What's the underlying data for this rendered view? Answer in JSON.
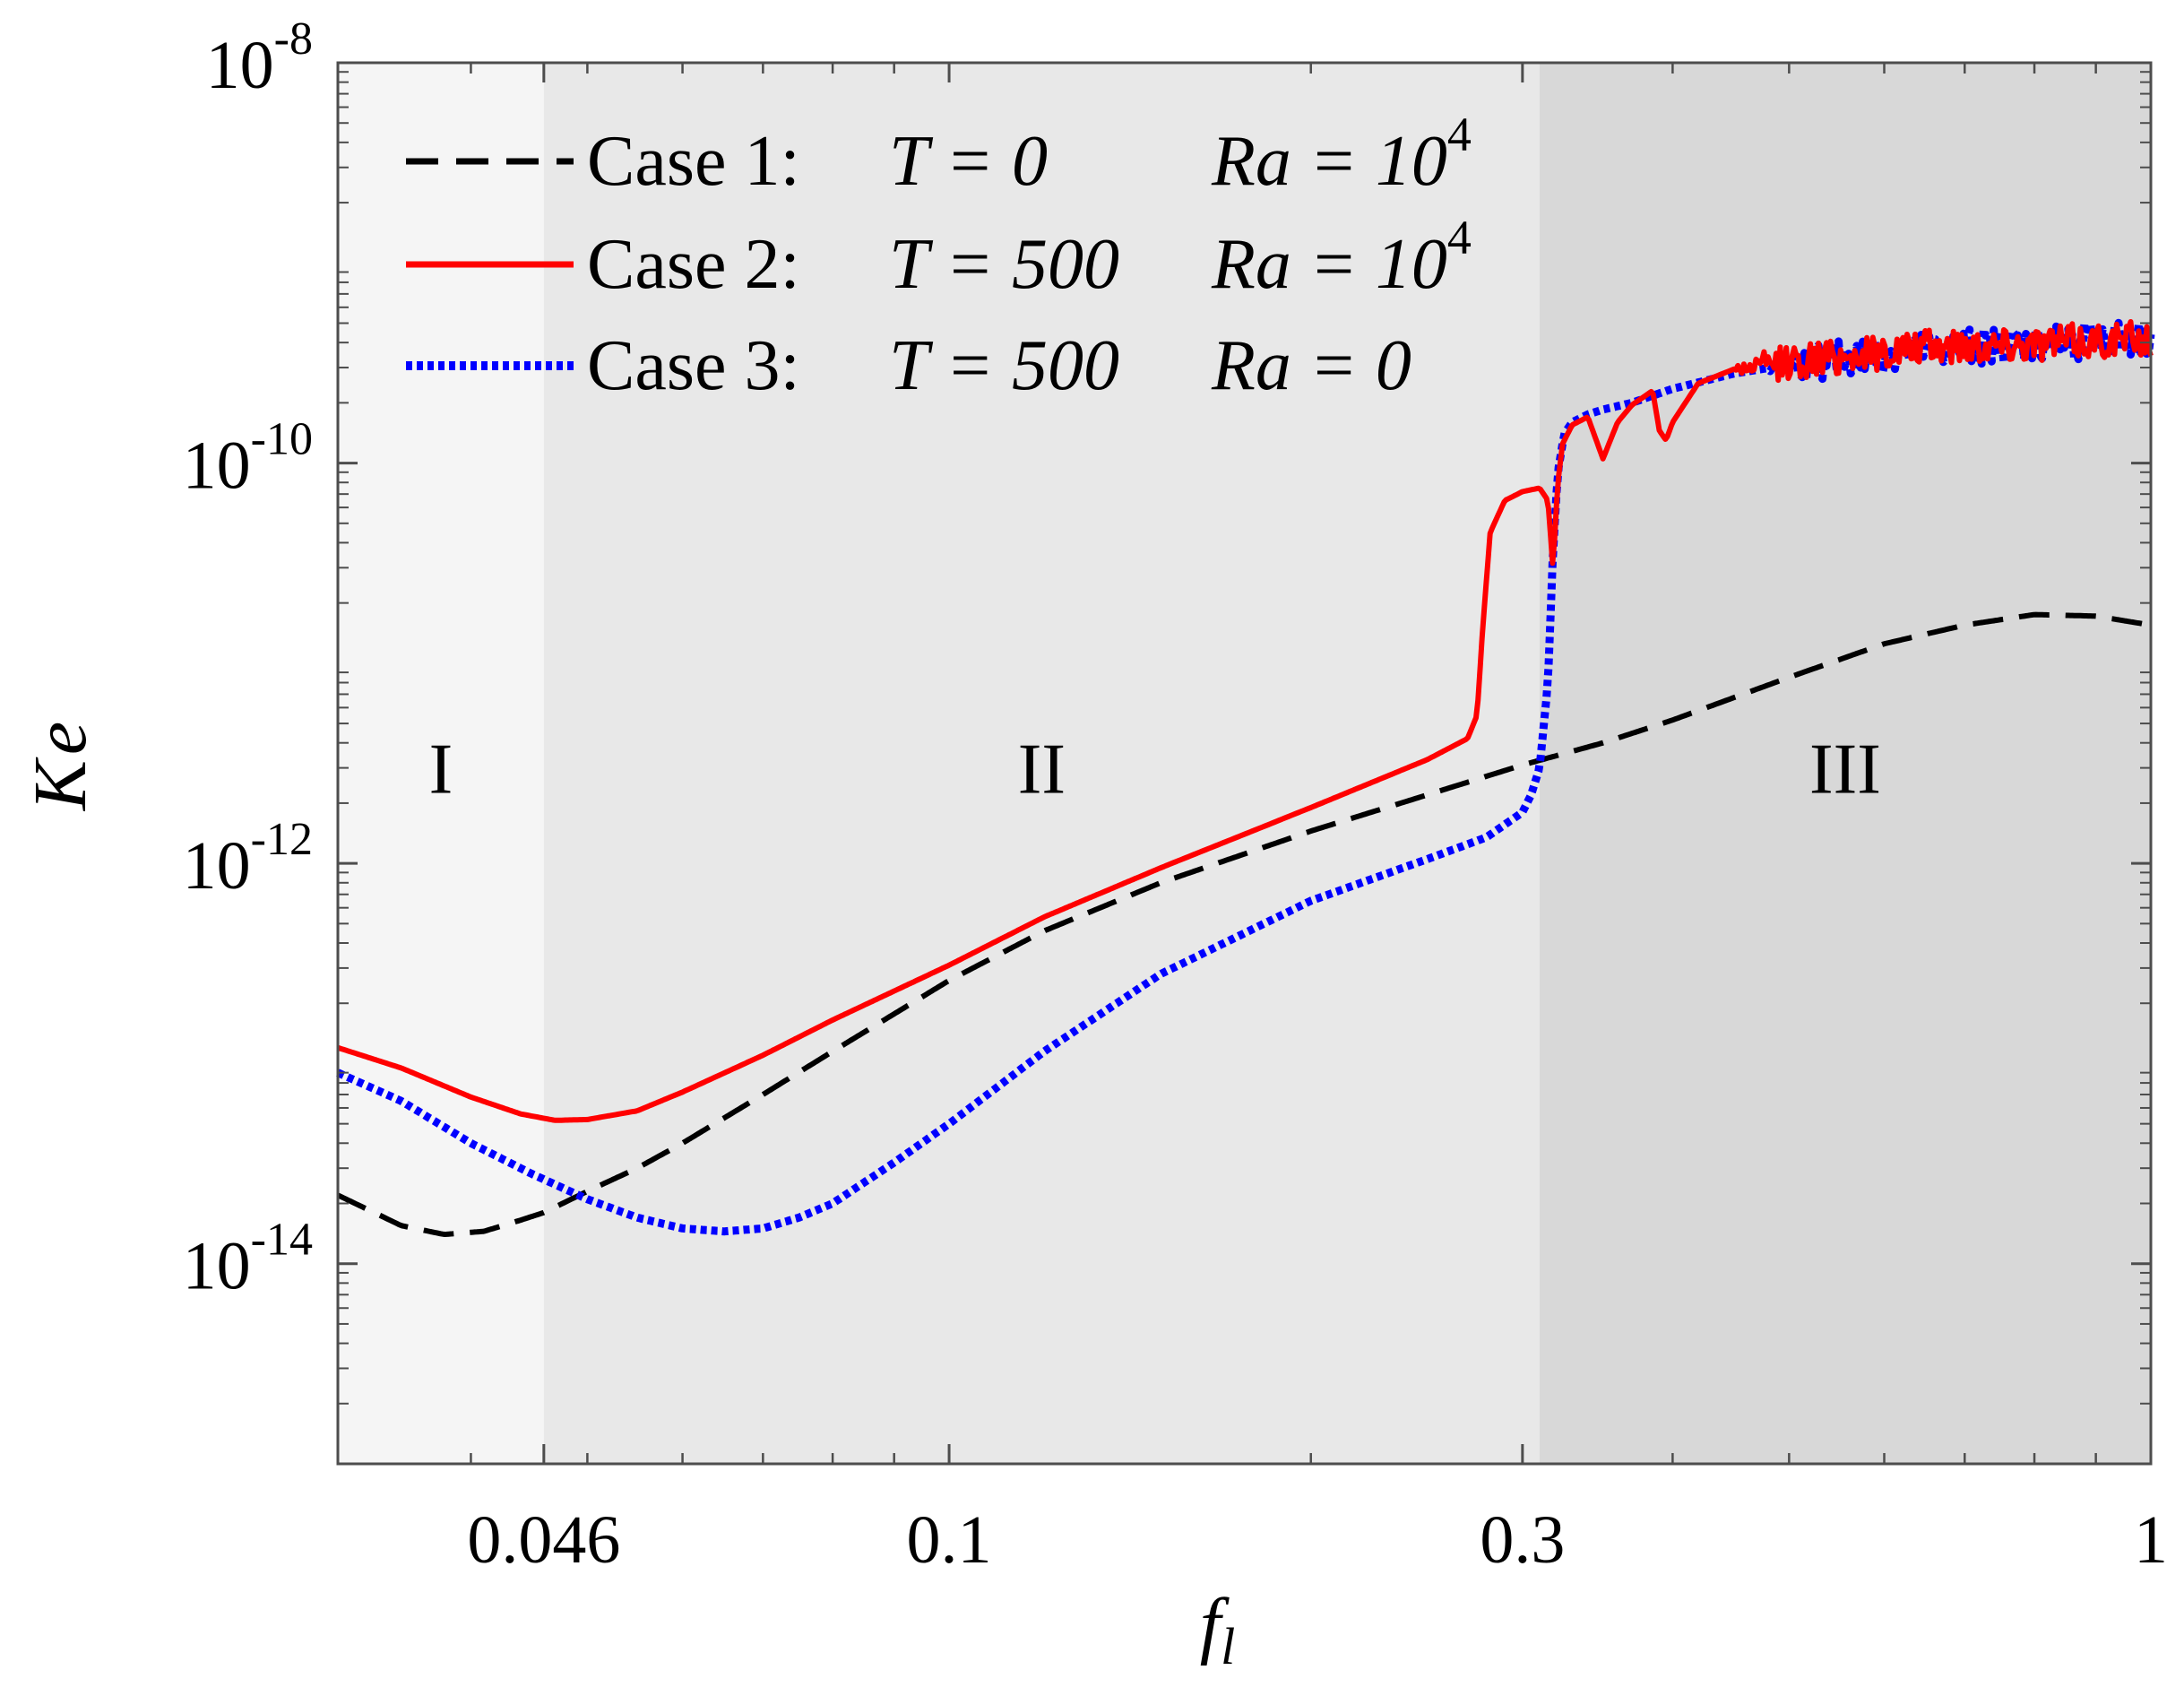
{
  "chart_data": {
    "type": "line",
    "title": "",
    "xlabel": "f",
    "xlabel_sub": "l",
    "ylabel": "Ke",
    "xscale": "log",
    "yscale": "log",
    "xlim": [
      0.031,
      1.0
    ],
    "ylim": [
      1e-15,
      1e-08
    ],
    "grid": false,
    "legend_position": "top-left",
    "x_ticks": [
      {
        "value": 0.046,
        "label": "0.046"
      },
      {
        "value": 0.1,
        "label": "0.1"
      },
      {
        "value": 0.3,
        "label": "0.3"
      },
      {
        "value": 1.0,
        "label": "1"
      }
    ],
    "y_ticks": [
      {
        "value": 1e-08,
        "base": "10",
        "exp": "-8"
      },
      {
        "value": 1e-10,
        "base": "10",
        "exp": "-10"
      },
      {
        "value": 1e-12,
        "base": "10",
        "exp": "-12"
      },
      {
        "value": 1e-14,
        "base": "10",
        "exp": "-14"
      }
    ],
    "regions": [
      {
        "name": "I",
        "x_from": 0.031,
        "x_to": 0.046,
        "color": "#f5f5f5"
      },
      {
        "name": "II",
        "x_from": 0.046,
        "x_to": 0.31,
        "color": "#e8e8e8"
      },
      {
        "name": "III",
        "x_from": 0.31,
        "x_to": 1.0,
        "color": "#d8d8d8"
      }
    ],
    "region_label_y": 3e-12,
    "series": [
      {
        "name": "Case 1",
        "legend": {
          "prefix": "Case 1:",
          "T": "T = 0",
          "Ra": "Ra = 10",
          "Ra_exp": "4"
        },
        "color": "#000000",
        "style": "dashed",
        "noise": 0,
        "x": [
          0.031,
          0.035,
          0.038,
          0.041,
          0.044,
          0.046,
          0.05,
          0.055,
          0.06,
          0.07,
          0.08,
          0.1,
          0.12,
          0.15,
          0.2,
          0.25,
          0.3,
          0.35,
          0.4,
          0.5,
          0.6,
          0.7,
          0.8,
          0.9,
          1.0
        ],
        "y": [
          2.2e-14,
          1.55e-14,
          1.4e-14,
          1.45e-14,
          1.65e-14,
          1.8e-14,
          2.3e-14,
          3e-14,
          4e-14,
          7e-14,
          1.15e-13,
          2.6e-13,
          4.6e-13,
          8e-13,
          1.45e-12,
          2.2e-12,
          3.1e-12,
          4e-12,
          5.2e-12,
          8.5e-12,
          1.25e-11,
          1.55e-11,
          1.75e-11,
          1.72e-11,
          1.55e-11
        ]
      },
      {
        "name": "Case 2",
        "legend": {
          "prefix": "Case 2:",
          "T": "T = 500",
          "Ra": "Ra = 10",
          "Ra_exp": "4"
        },
        "color": "#ff0000",
        "style": "solid",
        "noise": 0.09,
        "noise_from": 0.45,
        "x": [
          0.031,
          0.035,
          0.04,
          0.044,
          0.047,
          0.05,
          0.055,
          0.06,
          0.07,
          0.08,
          0.1,
          0.12,
          0.15,
          0.2,
          0.25,
          0.27,
          0.275,
          0.278,
          0.282,
          0.29,
          0.3,
          0.31,
          0.315,
          0.318,
          0.321,
          0.324,
          0.33,
          0.34,
          0.35,
          0.36,
          0.37,
          0.385,
          0.39,
          0.395,
          0.4,
          0.42,
          0.45,
          0.5,
          0.6,
          0.7,
          0.8,
          0.9,
          1.0
        ],
        "y": [
          1.2e-13,
          9.5e-14,
          6.8e-14,
          5.6e-14,
          5.2e-14,
          5.25e-14,
          5.8e-14,
          7.2e-14,
          1.1e-13,
          1.65e-13,
          3.1e-13,
          5.4e-13,
          9.5e-13,
          1.9e-12,
          3.3e-12,
          4.2e-12,
          5.5e-12,
          1.5e-11,
          4.5e-11,
          6.5e-11,
          7.2e-11,
          7.5e-11,
          6.5e-11,
          3e-11,
          8e-11,
          1.25e-10,
          1.55e-10,
          1.7e-10,
          1.05e-10,
          1.6e-10,
          1.95e-10,
          2.3e-10,
          1.45e-10,
          1.3e-10,
          1.6e-10,
          2.5e-10,
          2.95e-10,
          3.2e-10,
          3.6e-10,
          3.9e-10,
          4e-10,
          4.1e-10,
          4.2e-10
        ]
      },
      {
        "name": "Case 3",
        "legend": {
          "prefix": "Case 3:",
          "T": "T = 500",
          "Ra": "Ra = 0",
          "Ra_exp": ""
        },
        "color": "#0000ff",
        "style": "dotted",
        "noise": 0.09,
        "noise_from": 0.48,
        "x": [
          0.031,
          0.035,
          0.04,
          0.045,
          0.05,
          0.055,
          0.06,
          0.065,
          0.07,
          0.075,
          0.08,
          0.09,
          0.1,
          0.12,
          0.15,
          0.2,
          0.25,
          0.28,
          0.3,
          0.305,
          0.31,
          0.315,
          0.318,
          0.321,
          0.325,
          0.33,
          0.34,
          0.35,
          0.37,
          0.4,
          0.45,
          0.5,
          0.6,
          0.7,
          0.8,
          0.9,
          1.0
        ],
        "y": [
          9e-14,
          6.5e-14,
          4e-14,
          2.8e-14,
          2.1e-14,
          1.7e-14,
          1.5e-14,
          1.45e-14,
          1.5e-14,
          1.7e-14,
          2e-14,
          3.2e-14,
          5e-14,
          1.15e-13,
          2.8e-13,
          6.5e-13,
          1.05e-12,
          1.35e-12,
          1.8e-12,
          2.2e-12,
          3e-12,
          8e-12,
          3.5e-11,
          9e-11,
          1.4e-10,
          1.6e-10,
          1.75e-10,
          1.85e-10,
          2e-10,
          2.35e-10,
          2.8e-10,
          3.1e-10,
          3.5e-10,
          3.8e-10,
          3.95e-10,
          4.1e-10,
          4.2e-10
        ]
      }
    ]
  }
}
